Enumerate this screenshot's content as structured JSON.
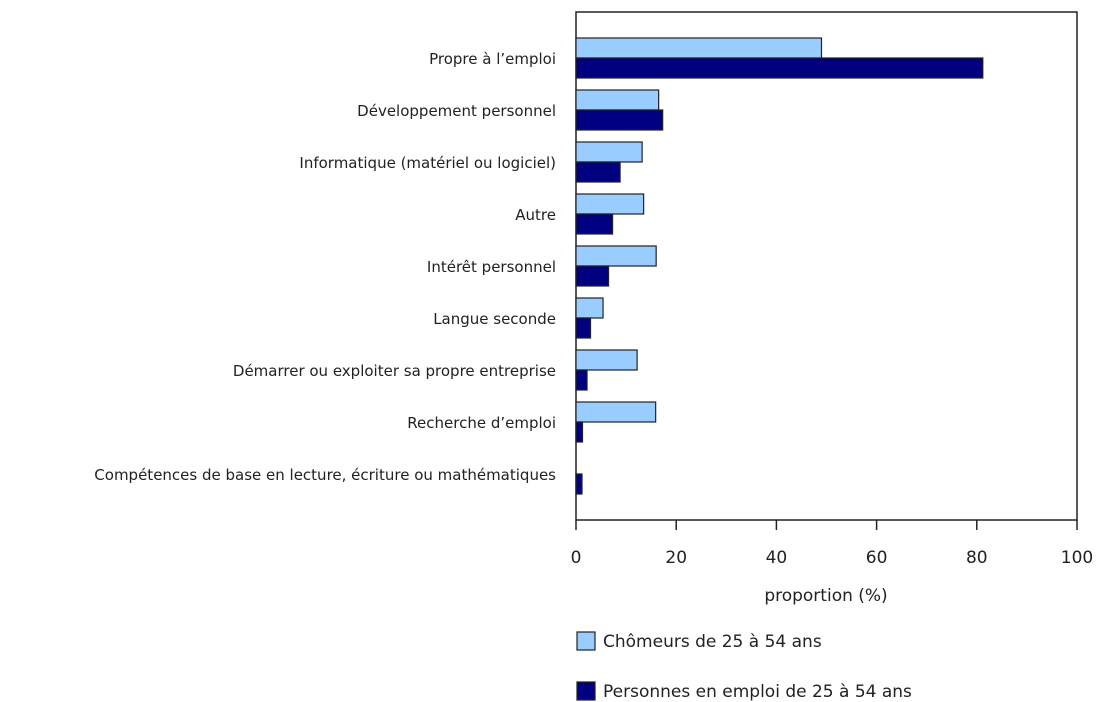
{
  "chart_data": {
    "type": "bar",
    "orientation": "horizontal",
    "categories": [
      "Propre à l’emploi",
      "Développement personnel",
      "Informatique (matériel ou logiciel)",
      "Autre",
      "Intérêt personnel",
      "Langue seconde",
      "Démarrer ou exploiter sa propre entreprise",
      "Recherche d’emploi",
      "Compétences de base en lecture, écriture ou mathématiques"
    ],
    "series": [
      {
        "name": "Chômeurs de 25 à 54 ans",
        "color": "#99ccff",
        "values": [
          49,
          16.5,
          13.2,
          13.5,
          16,
          5.4,
          12.2,
          15.9,
          0
        ]
      },
      {
        "name": "Personnes en emploi de 25 à 54 ans",
        "color": "#000080",
        "values": [
          81.2,
          17.3,
          8.8,
          7.3,
          6.5,
          2.9,
          2.2,
          1.3,
          1.2
        ]
      }
    ],
    "xlabel": "proportion (%)",
    "ylabel": "",
    "xlim": [
      0,
      100
    ],
    "xticks": [
      "0",
      "20",
      "40",
      "60",
      "80",
      "100"
    ],
    "grid": false,
    "legend_position": "bottom"
  }
}
